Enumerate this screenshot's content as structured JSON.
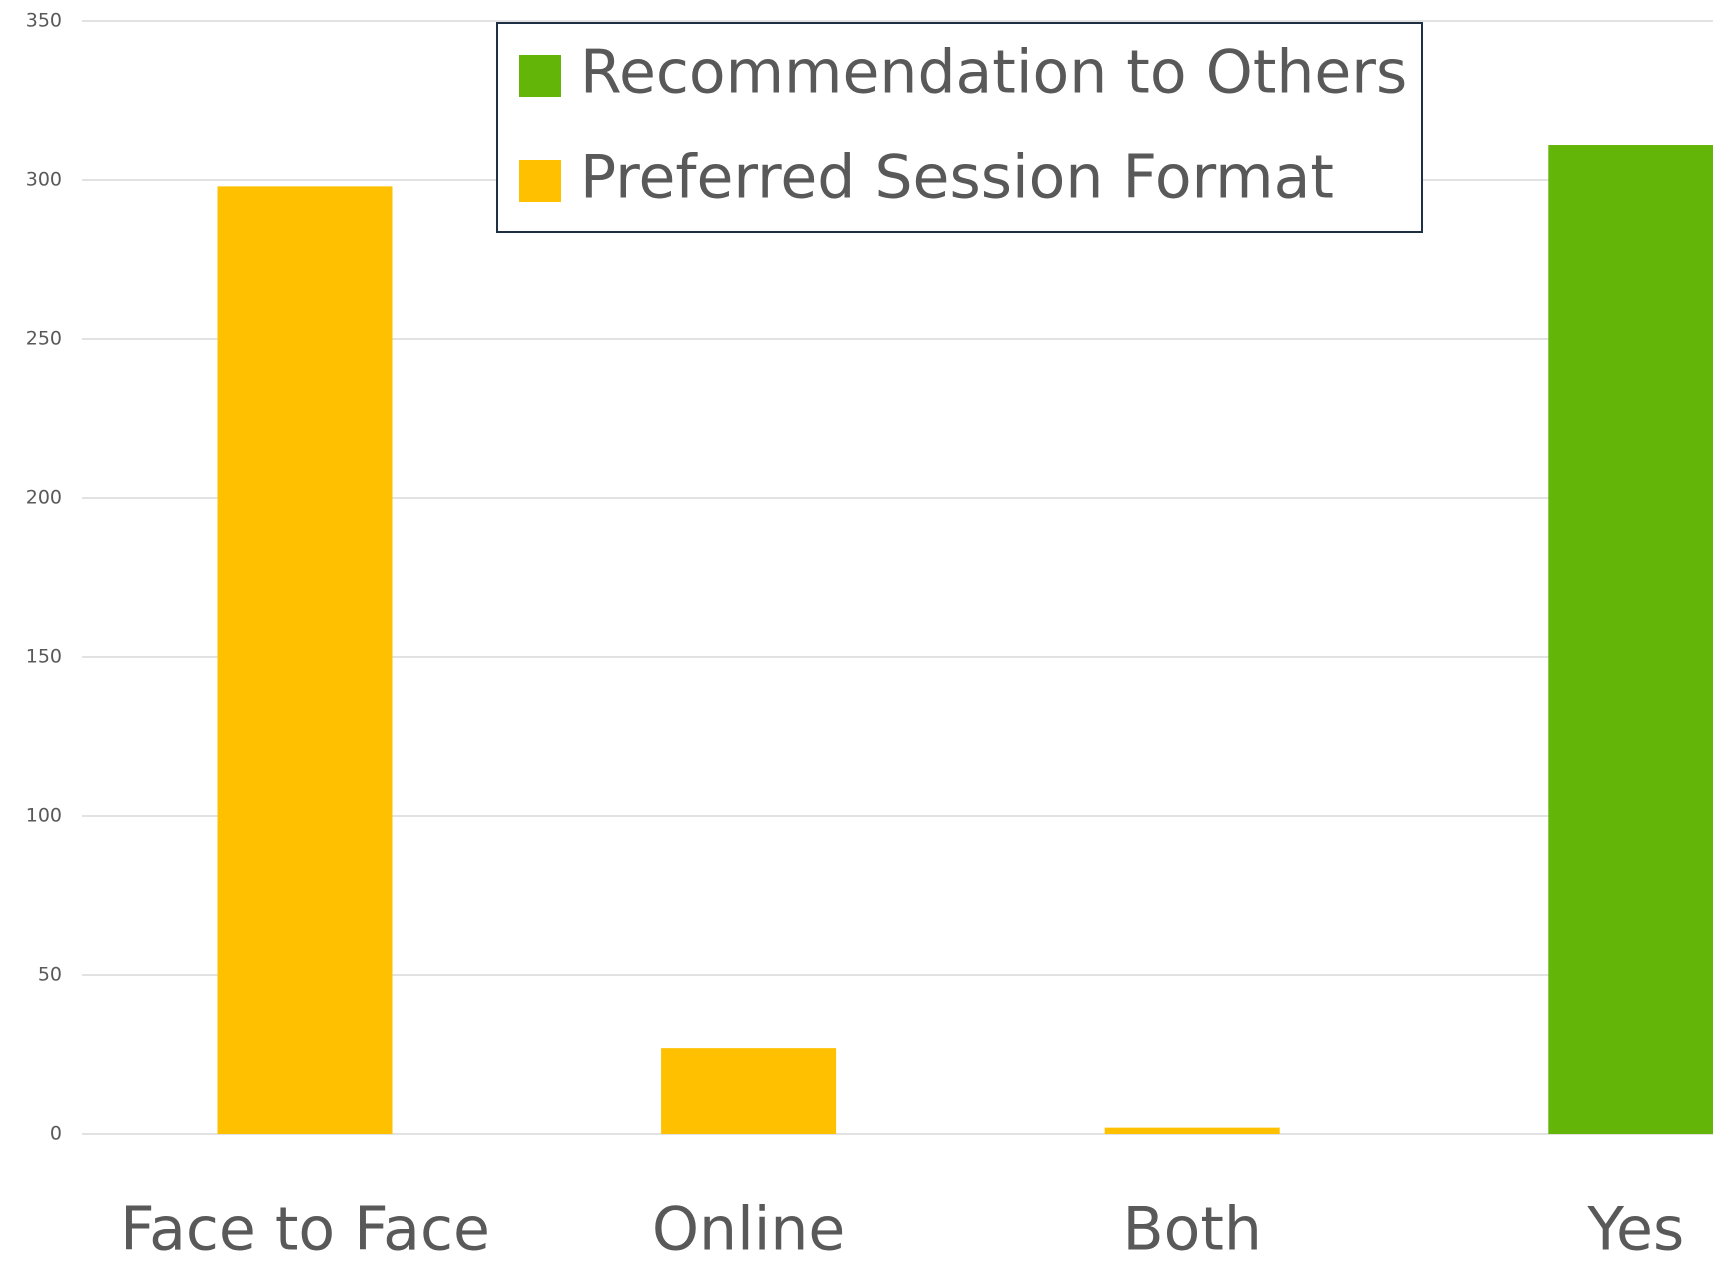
{
  "chart_data": {
    "type": "bar",
    "categories": [
      "Face to Face",
      "Online",
      "Both",
      "Yes"
    ],
    "series": [
      {
        "name": "Recommendation to Others",
        "color": "#63b507",
        "values": [
          null,
          null,
          null,
          311
        ]
      },
      {
        "name": "Preferred Session Format",
        "color": "#ffc000",
        "values": [
          298,
          27,
          2,
          null
        ]
      }
    ],
    "ylim": [
      0,
      350
    ],
    "yticks": [
      0,
      50,
      100,
      150,
      200,
      250,
      300,
      350
    ],
    "grid": true
  }
}
